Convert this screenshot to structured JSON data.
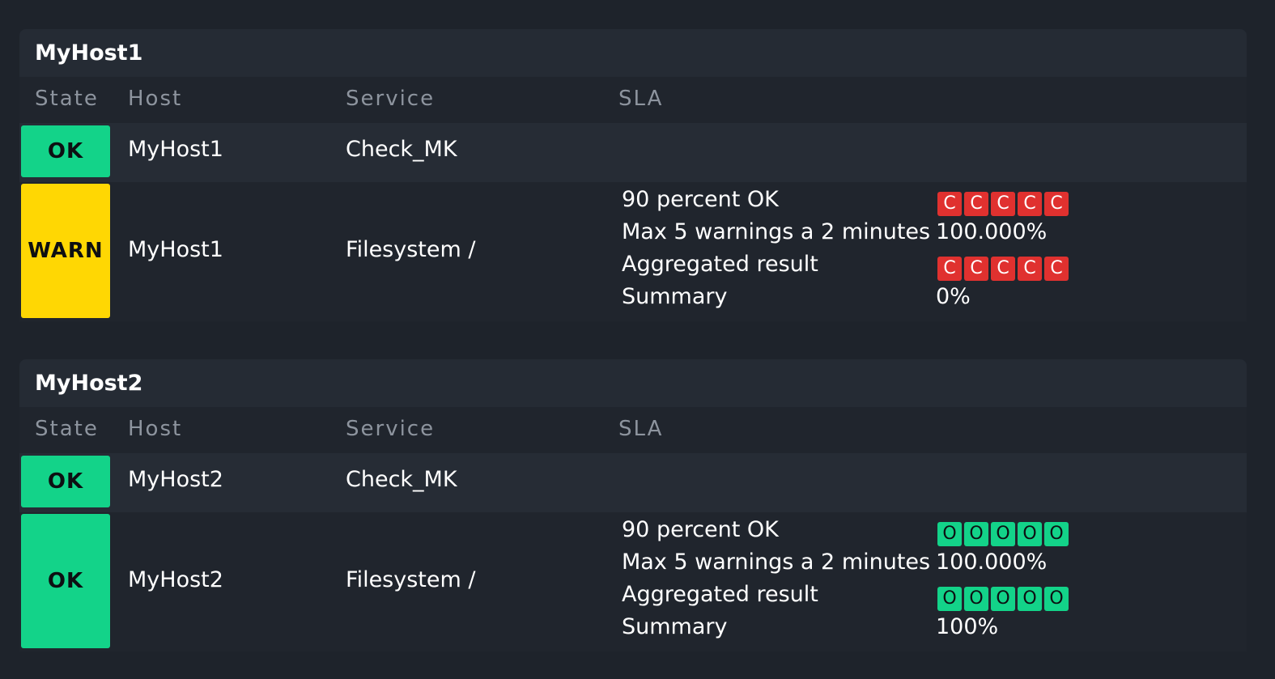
{
  "columns": {
    "state": "State",
    "host": "Host",
    "service": "Service",
    "sla": "SLA"
  },
  "groups": [
    {
      "title": "MyHost1",
      "rows": [
        {
          "state": "OK",
          "host": "MyHost1",
          "service": "Check_MK"
        },
        {
          "state": "WARN",
          "host": "MyHost1",
          "service": "Filesystem /",
          "sla": {
            "line1_label": "90 percent OK",
            "line1_boxes": [
              "C",
              "C",
              "C",
              "C",
              "C"
            ],
            "line2_label": "Max 5 warnings a 2 minutes",
            "line2_value": "100.000%",
            "line3_label": "Aggregated result",
            "line3_boxes": [
              "C",
              "C",
              "C",
              "C",
              "C"
            ],
            "line4_label": "Summary",
            "line4_value": "0%"
          }
        }
      ]
    },
    {
      "title": "MyHost2",
      "rows": [
        {
          "state": "OK",
          "host": "MyHost2",
          "service": "Check_MK"
        },
        {
          "state": "OK",
          "host": "MyHost2",
          "service": "Filesystem /",
          "sla": {
            "line1_label": "90 percent OK",
            "line1_boxes": [
              "O",
              "O",
              "O",
              "O",
              "O"
            ],
            "line2_label": "Max 5 warnings a 2 minutes",
            "line2_value": "100.000%",
            "line3_label": "Aggregated result",
            "line3_boxes": [
              "O",
              "O",
              "O",
              "O",
              "O"
            ],
            "line4_label": "Summary",
            "line4_value": "100%"
          }
        }
      ]
    }
  ],
  "colors": {
    "ok": "#13d389",
    "warn": "#ffd703",
    "crit": "#e0312f",
    "background": "#1e232b"
  }
}
